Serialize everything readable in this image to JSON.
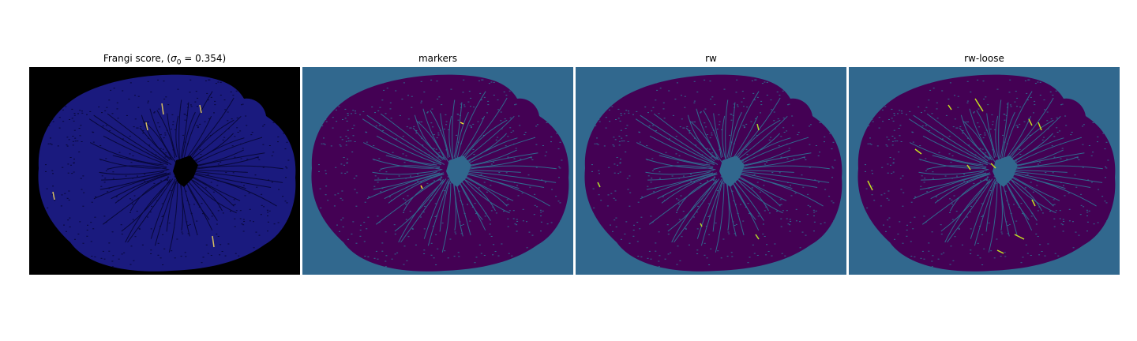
{
  "figure": {
    "panels": [
      {
        "id": "frangi",
        "title_text": "Frangi score, (",
        "title_sigma": "σ",
        "title_sub": "0",
        "title_eq": " = 0.354)",
        "background_color": "#000000",
        "blob_color": "#1a1a7e",
        "vessel_color": "#08083a",
        "highlight_color": "#d8c060"
      },
      {
        "id": "markers",
        "title": "markers",
        "background_color": "#31688e",
        "blob_color": "#440154",
        "vessel_color": "#31688e",
        "highlight_color": "#fde725"
      },
      {
        "id": "rw",
        "title": "rw",
        "background_color": "#31688e",
        "blob_color": "#440154",
        "vessel_color": "#31688e",
        "highlight_color": "#b5de2b"
      },
      {
        "id": "rw-loose",
        "title": "rw-loose",
        "background_color": "#31688e",
        "blob_color": "#440154",
        "vessel_color": "#31688e",
        "highlight_color": "#c8e020"
      }
    ]
  }
}
